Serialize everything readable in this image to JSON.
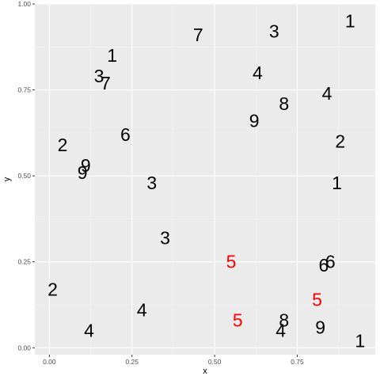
{
  "chart_data": {
    "type": "scatter",
    "title": "",
    "xlabel": "x",
    "ylabel": "y",
    "xlim": [
      -0.044,
      0.986
    ],
    "ylim": [
      -0.02,
      1.0
    ],
    "grid": true,
    "background": "#ebebeb",
    "x_ticks": [
      0.0,
      0.25,
      0.5,
      0.75
    ],
    "x_tick_labels": [
      "0.00",
      "0.25",
      "0.50",
      "0.75"
    ],
    "y_ticks": [
      0.0,
      0.25,
      0.5,
      0.75,
      1.0
    ],
    "y_tick_labels": [
      "0.00",
      "0.25",
      "0.50",
      "0.75",
      "1.00"
    ],
    "points": [
      {
        "x": 0.91,
        "y": 0.95,
        "label": "1",
        "color": "#000000"
      },
      {
        "x": 0.45,
        "y": 0.91,
        "label": "7",
        "color": "#000000"
      },
      {
        "x": 0.68,
        "y": 0.92,
        "label": "3",
        "color": "#000000"
      },
      {
        "x": 0.19,
        "y": 0.85,
        "label": "1",
        "color": "#000000"
      },
      {
        "x": 0.63,
        "y": 0.8,
        "label": "4",
        "color": "#000000"
      },
      {
        "x": 0.15,
        "y": 0.79,
        "label": "3",
        "color": "#000000"
      },
      {
        "x": 0.17,
        "y": 0.77,
        "label": "7",
        "color": "#000000"
      },
      {
        "x": 0.84,
        "y": 0.74,
        "label": "4",
        "color": "#000000"
      },
      {
        "x": 0.71,
        "y": 0.71,
        "label": "8",
        "color": "#000000"
      },
      {
        "x": 0.62,
        "y": 0.66,
        "label": "9",
        "color": "#000000"
      },
      {
        "x": 0.23,
        "y": 0.62,
        "label": "6",
        "color": "#000000"
      },
      {
        "x": 0.04,
        "y": 0.59,
        "label": "2",
        "color": "#000000"
      },
      {
        "x": 0.88,
        "y": 0.6,
        "label": "2",
        "color": "#000000"
      },
      {
        "x": 0.11,
        "y": 0.53,
        "label": "9",
        "color": "#000000"
      },
      {
        "x": 0.1,
        "y": 0.51,
        "label": "9",
        "color": "#000000"
      },
      {
        "x": 0.87,
        "y": 0.48,
        "label": "1",
        "color": "#000000"
      },
      {
        "x": 0.31,
        "y": 0.48,
        "label": "3",
        "color": "#000000"
      },
      {
        "x": 0.35,
        "y": 0.32,
        "label": "3",
        "color": "#000000"
      },
      {
        "x": 0.55,
        "y": 0.25,
        "label": "5",
        "color": "#ff0000"
      },
      {
        "x": 0.85,
        "y": 0.25,
        "label": "6",
        "color": "#000000"
      },
      {
        "x": 0.83,
        "y": 0.24,
        "label": "6",
        "color": "#000000"
      },
      {
        "x": 0.01,
        "y": 0.17,
        "label": "2",
        "color": "#000000"
      },
      {
        "x": 0.81,
        "y": 0.14,
        "label": "5",
        "color": "#ff0000"
      },
      {
        "x": 0.28,
        "y": 0.11,
        "label": "4",
        "color": "#000000"
      },
      {
        "x": 0.57,
        "y": 0.08,
        "label": "5",
        "color": "#ff0000"
      },
      {
        "x": 0.71,
        "y": 0.08,
        "label": "8",
        "color": "#000000"
      },
      {
        "x": 0.12,
        "y": 0.05,
        "label": "4",
        "color": "#000000"
      },
      {
        "x": 0.7,
        "y": 0.05,
        "label": "4",
        "color": "#000000"
      },
      {
        "x": 0.82,
        "y": 0.06,
        "label": "9",
        "color": "#000000"
      },
      {
        "x": 0.94,
        "y": 0.02,
        "label": "1",
        "color": "#000000"
      }
    ]
  }
}
